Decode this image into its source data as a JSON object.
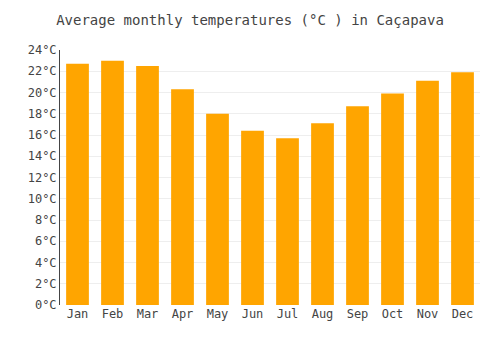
{
  "chart_data": {
    "type": "bar",
    "title": "Average monthly temperatures (°C ) in Caçapava",
    "categories": [
      "Jan",
      "Feb",
      "Mar",
      "Apr",
      "May",
      "Jun",
      "Jul",
      "Aug",
      "Sep",
      "Oct",
      "Nov",
      "Dec"
    ],
    "values": [
      22.7,
      23.0,
      22.5,
      20.3,
      18.0,
      16.4,
      15.7,
      17.1,
      18.7,
      19.9,
      21.1,
      21.9
    ],
    "color": "#FFA500",
    "ylim": [
      0,
      24
    ],
    "yticks": [
      {
        "value": 0,
        "label": "0°C"
      },
      {
        "value": 2,
        "label": "2°C"
      },
      {
        "value": 4,
        "label": "4°C"
      },
      {
        "value": 6,
        "label": "6°C"
      },
      {
        "value": 8,
        "label": "8°C"
      },
      {
        "value": 10,
        "label": "10°C"
      },
      {
        "value": 12,
        "label": "12°C"
      },
      {
        "value": 14,
        "label": "14°C"
      },
      {
        "value": 16,
        "label": "16°C"
      },
      {
        "value": 18,
        "label": "18°C"
      },
      {
        "value": 20,
        "label": "20°C"
      },
      {
        "value": 22,
        "label": "22°C"
      },
      {
        "value": 24,
        "label": "24°C"
      }
    ],
    "grid": true
  }
}
